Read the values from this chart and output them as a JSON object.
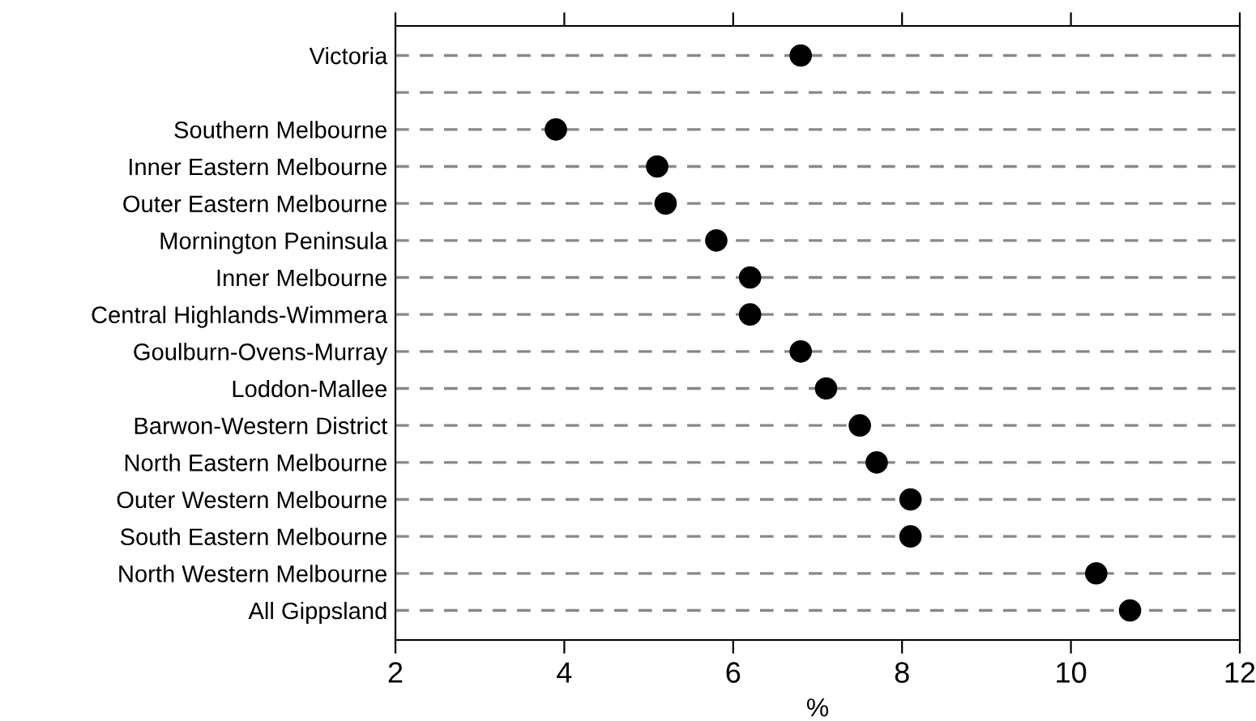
{
  "chart_data": {
    "type": "scatter",
    "orientation": "horizontal",
    "xlabel": "%",
    "categories": [
      "Victoria",
      null,
      "Southern Melbourne",
      "Inner Eastern Melbourne",
      "Outer Eastern Melbourne",
      "Mornington Peninsula",
      "Inner Melbourne",
      "Central Highlands-Wimmera",
      "Goulburn-Ovens-Murray",
      "Loddon-Mallee",
      "Barwon-Western District",
      "North Eastern Melbourne",
      "Outer Western Melbourne",
      "South Eastern Melbourne",
      "North Western Melbourne",
      "All Gippsland"
    ],
    "series": [
      {
        "color": "#000000",
        "values": [
          6.8,
          null,
          3.9,
          5.1,
          5.2,
          5.8,
          6.2,
          6.2,
          6.8,
          7.1,
          7.5,
          7.7,
          8.1,
          8.1,
          10.3,
          10.7
        ]
      }
    ],
    "xlim": [
      2,
      12
    ],
    "xticks": [
      2,
      4,
      6,
      8,
      10,
      12
    ],
    "grid": "y",
    "marker": "circle",
    "legend": false
  }
}
